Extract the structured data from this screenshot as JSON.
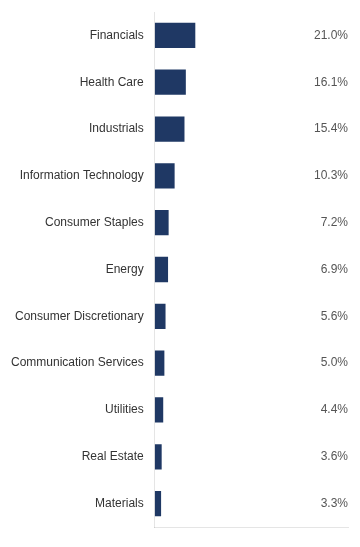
{
  "chart_data": {
    "type": "bar",
    "orientation": "horizontal",
    "categories": [
      "Financials",
      "Health Care",
      "Industrials",
      "Information Technology",
      "Consumer Staples",
      "Energy",
      "Consumer Discretionary",
      "Communication Services",
      "Utilities",
      "Real Estate",
      "Materials"
    ],
    "values": [
      21.0,
      16.1,
      15.4,
      10.3,
      7.2,
      6.9,
      5.6,
      5.0,
      4.4,
      3.6,
      3.3
    ],
    "value_labels": [
      "21.0%",
      "16.1%",
      "15.4%",
      "10.3%",
      "7.2%",
      "6.9%",
      "5.6%",
      "5.0%",
      "4.4%",
      "3.6%",
      "3.3%"
    ],
    "data_labels": true,
    "color": "#1f3864",
    "xlim": [
      0,
      100
    ],
    "grid": false,
    "tick_labels": "y"
  }
}
